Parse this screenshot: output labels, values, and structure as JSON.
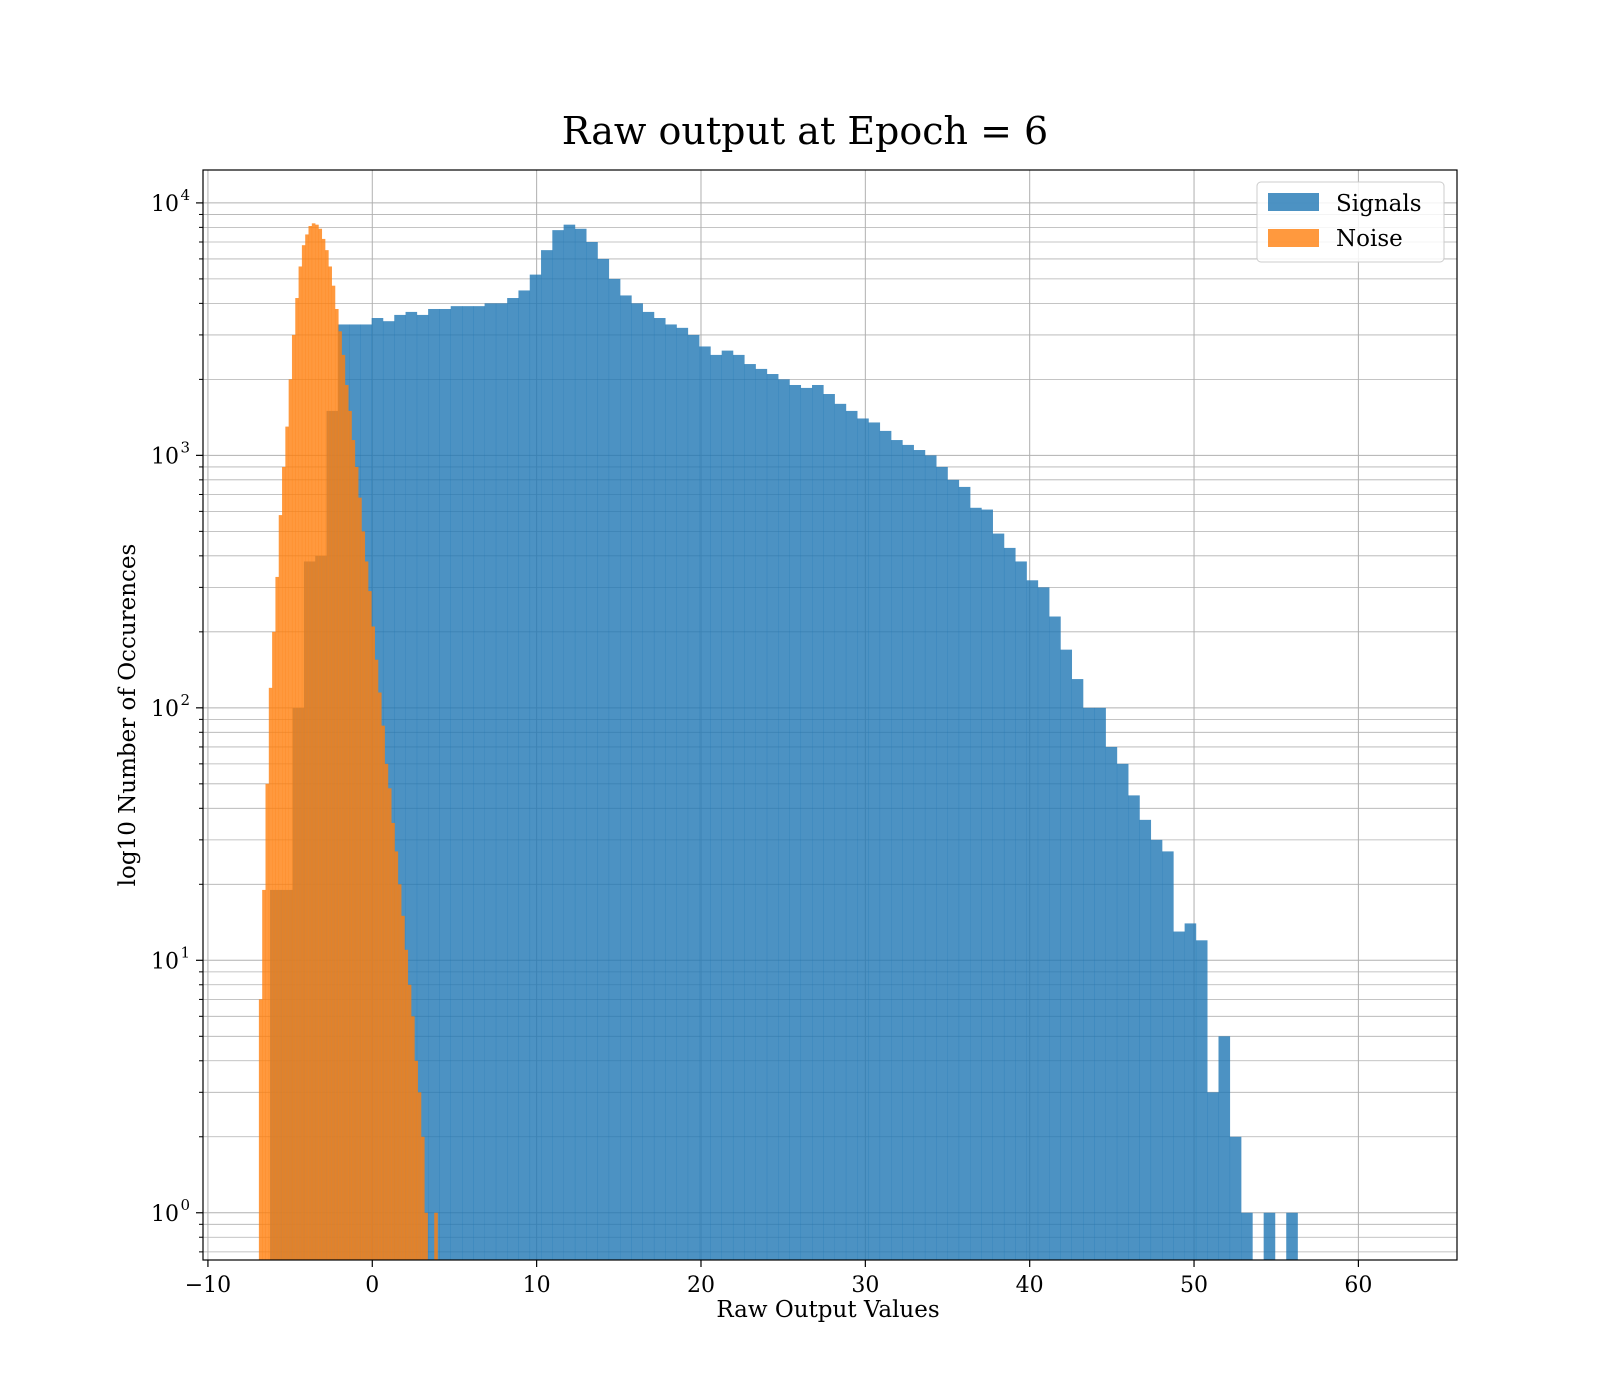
{
  "chart_data": {
    "type": "histogram",
    "title": "Raw output at Epoch = 6",
    "xlabel": "Raw Output Values",
    "ylabel": "log10 Number of Occurences",
    "xlim": [
      -10.3,
      66
    ],
    "ylim": [
      0.65,
      13500
    ],
    "yscale": "log",
    "grid": true,
    "legend_position": "top-right",
    "x_ticks": [
      {
        "value": -10,
        "label": "−10"
      },
      {
        "value": 0,
        "label": "0"
      },
      {
        "value": 10,
        "label": "10"
      },
      {
        "value": 20,
        "label": "20"
      },
      {
        "value": 30,
        "label": "30"
      },
      {
        "value": 40,
        "label": "40"
      },
      {
        "value": 50,
        "label": "50"
      },
      {
        "value": 60,
        "label": "60"
      }
    ],
    "y_ticks": [
      {
        "value": 1,
        "base": "10",
        "exp": "0"
      },
      {
        "value": 10,
        "base": "10",
        "exp": "1"
      },
      {
        "value": 100,
        "base": "10",
        "exp": "2"
      },
      {
        "value": 1000,
        "base": "10",
        "exp": "3"
      },
      {
        "value": 10000,
        "base": "10",
        "exp": "4"
      }
    ],
    "series": [
      {
        "name": "Signals",
        "color": "#1f77b4",
        "opacity": 0.8,
        "bin_start": -6.22,
        "bin_width": 0.687,
        "counts": [
          19,
          19,
          100,
          380,
          400,
          1500,
          3300,
          3300,
          3300,
          3500,
          3400,
          3600,
          3700,
          3600,
          3800,
          3800,
          3900,
          3900,
          3900,
          4000,
          4000,
          4200,
          4500,
          5200,
          6500,
          7800,
          8200,
          7900,
          7000,
          6000,
          5000,
          4300,
          4000,
          3700,
          3500,
          3300,
          3200,
          3000,
          2700,
          2500,
          2600,
          2500,
          2300,
          2200,
          2100,
          2000,
          1900,
          1850,
          1900,
          1750,
          1600,
          1500,
          1400,
          1350,
          1250,
          1150,
          1100,
          1050,
          1000,
          900,
          800,
          750,
          620,
          610,
          490,
          430,
          380,
          320,
          300,
          230,
          170,
          130,
          100,
          100,
          70,
          60,
          45,
          36,
          30,
          27,
          13,
          14,
          12,
          3,
          5,
          2,
          1,
          0,
          1,
          0,
          1
        ]
      },
      {
        "name": "Noise",
        "color": "#ff7f0e",
        "opacity": 0.8,
        "bin_start": -6.9,
        "bin_width": 0.2013,
        "counts": [
          7,
          19,
          50,
          120,
          200,
          330,
          580,
          900,
          1300,
          2000,
          3000,
          4200,
          5600,
          6800,
          7500,
          8100,
          8300,
          8200,
          7900,
          7200,
          6500,
          5600,
          4700,
          3800,
          3100,
          2500,
          1900,
          1500,
          1150,
          900,
          680,
          500,
          380,
          290,
          210,
          155,
          115,
          85,
          60,
          48,
          35,
          27,
          20,
          15,
          11,
          8,
          6,
          4,
          3,
          2,
          1,
          0,
          0,
          1
        ]
      }
    ]
  }
}
